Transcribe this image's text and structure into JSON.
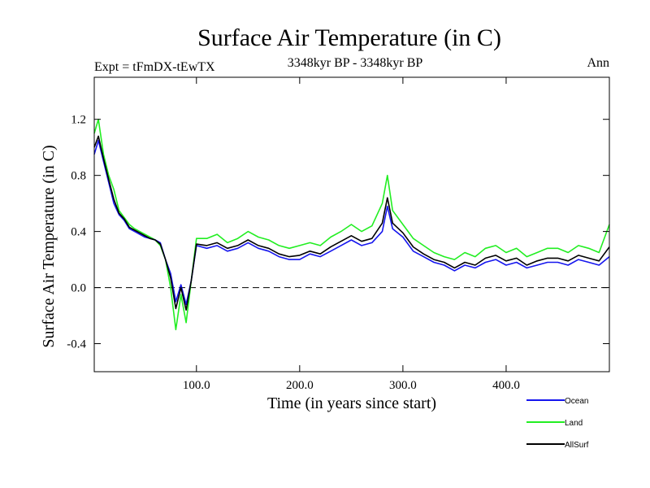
{
  "chart_data": {
    "type": "line",
    "title": "Surface Air Temperature (in C)",
    "subtitle_left": "Expt = tFmDX-tEwTX",
    "subtitle_center": "3348kyr BP - 3348kyr BP",
    "subtitle_right": "Ann",
    "xlabel": "Time (in years since start)",
    "ylabel": "Surface Air Temperature (in C)",
    "xlim": [
      1,
      500
    ],
    "ylim": [
      -0.6,
      1.5
    ],
    "xticks": [
      100,
      200,
      300,
      400
    ],
    "xtick_labels": [
      "100.0",
      "200.0",
      "300.0",
      "400.0"
    ],
    "yticks": [
      -0.4,
      0.0,
      0.4,
      0.8,
      1.2
    ],
    "ytick_labels": [
      "-0.4",
      "0.0",
      "0.4",
      "0.8",
      "1.2"
    ],
    "reference_line": 0.0,
    "legend_placement": "bottom-right",
    "series": [
      {
        "name": "Ocean",
        "color": "#1515ee",
        "x": [
          1,
          5,
          10,
          15,
          20,
          25,
          30,
          35,
          40,
          45,
          50,
          55,
          60,
          65,
          70,
          75,
          80,
          85,
          90,
          95,
          100,
          110,
          120,
          130,
          140,
          150,
          160,
          170,
          180,
          190,
          200,
          210,
          220,
          230,
          240,
          250,
          260,
          270,
          280,
          285,
          290,
          300,
          310,
          320,
          330,
          340,
          350,
          360,
          370,
          380,
          390,
          400,
          410,
          420,
          430,
          440,
          450,
          460,
          470,
          480,
          490,
          500
        ],
        "y": [
          0.95,
          1.05,
          0.9,
          0.75,
          0.6,
          0.52,
          0.48,
          0.42,
          0.4,
          0.38,
          0.36,
          0.35,
          0.34,
          0.32,
          0.2,
          0.1,
          -0.1,
          0.02,
          -0.12,
          0.05,
          0.3,
          0.28,
          0.3,
          0.26,
          0.28,
          0.32,
          0.28,
          0.26,
          0.22,
          0.2,
          0.2,
          0.24,
          0.22,
          0.26,
          0.3,
          0.34,
          0.3,
          0.32,
          0.4,
          0.58,
          0.42,
          0.36,
          0.26,
          0.22,
          0.18,
          0.16,
          0.12,
          0.16,
          0.14,
          0.18,
          0.2,
          0.16,
          0.18,
          0.14,
          0.16,
          0.18,
          0.18,
          0.16,
          0.2,
          0.18,
          0.16,
          0.22
        ]
      },
      {
        "name": "Land",
        "color": "#22ee22",
        "x": [
          1,
          5,
          10,
          15,
          20,
          25,
          30,
          35,
          40,
          45,
          50,
          55,
          60,
          65,
          70,
          75,
          80,
          85,
          90,
          95,
          100,
          110,
          120,
          130,
          140,
          150,
          160,
          170,
          180,
          190,
          200,
          210,
          220,
          230,
          240,
          250,
          260,
          270,
          280,
          285,
          290,
          300,
          310,
          320,
          330,
          340,
          350,
          360,
          370,
          380,
          390,
          400,
          410,
          420,
          430,
          440,
          450,
          460,
          470,
          480,
          490,
          500
        ],
        "y": [
          1.1,
          1.2,
          0.95,
          0.8,
          0.7,
          0.55,
          0.5,
          0.45,
          0.42,
          0.4,
          0.38,
          0.36,
          0.34,
          0.3,
          0.2,
          0.0,
          -0.3,
          -0.05,
          -0.25,
          0.05,
          0.35,
          0.35,
          0.38,
          0.32,
          0.35,
          0.4,
          0.36,
          0.34,
          0.3,
          0.28,
          0.3,
          0.32,
          0.3,
          0.36,
          0.4,
          0.45,
          0.4,
          0.44,
          0.6,
          0.8,
          0.55,
          0.45,
          0.35,
          0.3,
          0.25,
          0.22,
          0.2,
          0.25,
          0.22,
          0.28,
          0.3,
          0.25,
          0.28,
          0.22,
          0.25,
          0.28,
          0.28,
          0.25,
          0.3,
          0.28,
          0.25,
          0.45
        ]
      },
      {
        "name": "AllSurf",
        "color": "#000000",
        "x": [
          1,
          5,
          10,
          15,
          20,
          25,
          30,
          35,
          40,
          45,
          50,
          55,
          60,
          65,
          70,
          75,
          80,
          85,
          90,
          95,
          100,
          110,
          120,
          130,
          140,
          150,
          160,
          170,
          180,
          190,
          200,
          210,
          220,
          230,
          240,
          250,
          260,
          270,
          280,
          285,
          290,
          300,
          310,
          320,
          330,
          340,
          350,
          360,
          370,
          380,
          390,
          400,
          410,
          420,
          430,
          440,
          450,
          460,
          470,
          480,
          490,
          500
        ],
        "y": [
          1.0,
          1.08,
          0.92,
          0.77,
          0.63,
          0.53,
          0.49,
          0.43,
          0.41,
          0.39,
          0.37,
          0.35,
          0.34,
          0.31,
          0.2,
          0.07,
          -0.15,
          0.0,
          -0.16,
          0.05,
          0.31,
          0.3,
          0.32,
          0.28,
          0.3,
          0.34,
          0.3,
          0.28,
          0.24,
          0.22,
          0.23,
          0.26,
          0.24,
          0.29,
          0.33,
          0.37,
          0.33,
          0.35,
          0.46,
          0.64,
          0.46,
          0.39,
          0.29,
          0.24,
          0.2,
          0.18,
          0.14,
          0.18,
          0.16,
          0.21,
          0.23,
          0.19,
          0.21,
          0.16,
          0.19,
          0.21,
          0.21,
          0.19,
          0.23,
          0.21,
          0.19,
          0.29
        ]
      }
    ]
  }
}
